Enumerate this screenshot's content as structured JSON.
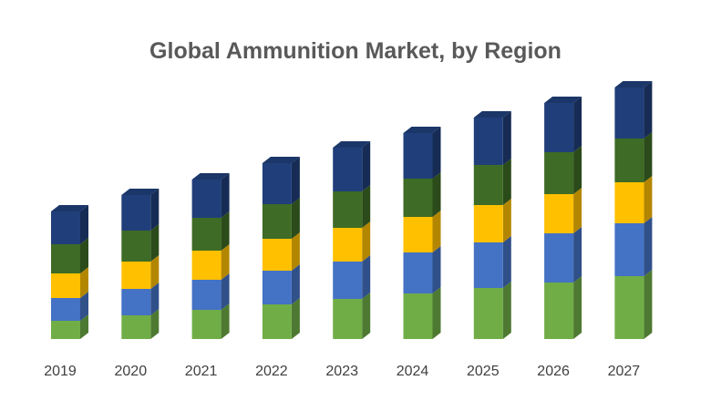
{
  "chart_data": {
    "type": "bar",
    "stacked": true,
    "three_d": true,
    "title": "Global Ammunition Market, by Region",
    "categories": [
      "2019",
      "2020",
      "2021",
      "2022",
      "2023",
      "2024",
      "2025",
      "2026",
      "2027"
    ],
    "series": [
      {
        "color": "#70ad47",
        "values": [
          20,
          26,
          32,
          38,
          44,
          50,
          56,
          62,
          69
        ]
      },
      {
        "color": "#4472c4",
        "values": [
          25,
          29,
          33,
          37,
          41,
          45,
          50,
          54,
          58
        ]
      },
      {
        "color": "#ffc000",
        "values": [
          27,
          30,
          32,
          35,
          37,
          39,
          41,
          43,
          45
        ]
      },
      {
        "color": "#3e6b25",
        "values": [
          32,
          34,
          36,
          38,
          40,
          42,
          44,
          46,
          48
        ]
      },
      {
        "color": "#203f7a",
        "values": [
          36,
          39,
          42,
          45,
          48,
          50,
          52,
          54,
          56
        ]
      }
    ],
    "grid": false,
    "legend": "none"
  }
}
